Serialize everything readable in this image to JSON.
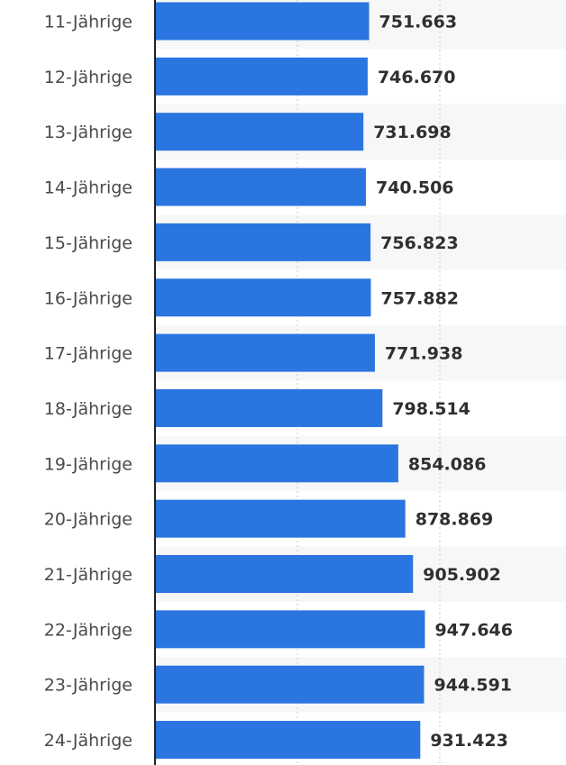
{
  "chart_data": {
    "type": "bar",
    "orientation": "horizontal",
    "categories": [
      "11-Jährige",
      "12-Jährige",
      "13-Jährige",
      "14-Jährige",
      "15-Jährige",
      "16-Jährige",
      "17-Jährige",
      "18-Jährige",
      "19-Jährige",
      "20-Jährige",
      "21-Jährige",
      "22-Jährige",
      "23-Jährige",
      "24-Jährige"
    ],
    "values": [
      751663,
      746670,
      731698,
      740506,
      756823,
      757882,
      771938,
      798514,
      854086,
      878869,
      905902,
      947646,
      944591,
      931423
    ],
    "value_labels": [
      "751.663",
      "746.670",
      "731.698",
      "740.506",
      "756.823",
      "757.882",
      "771.938",
      "798.514",
      "854.086",
      "878.869",
      "905.902",
      "947.646",
      "944.591",
      "931.423"
    ],
    "xlim": [
      0,
      1450000
    ],
    "grid": true,
    "bar_color": "#2a75e0",
    "band_color": "#f7f7f7"
  }
}
